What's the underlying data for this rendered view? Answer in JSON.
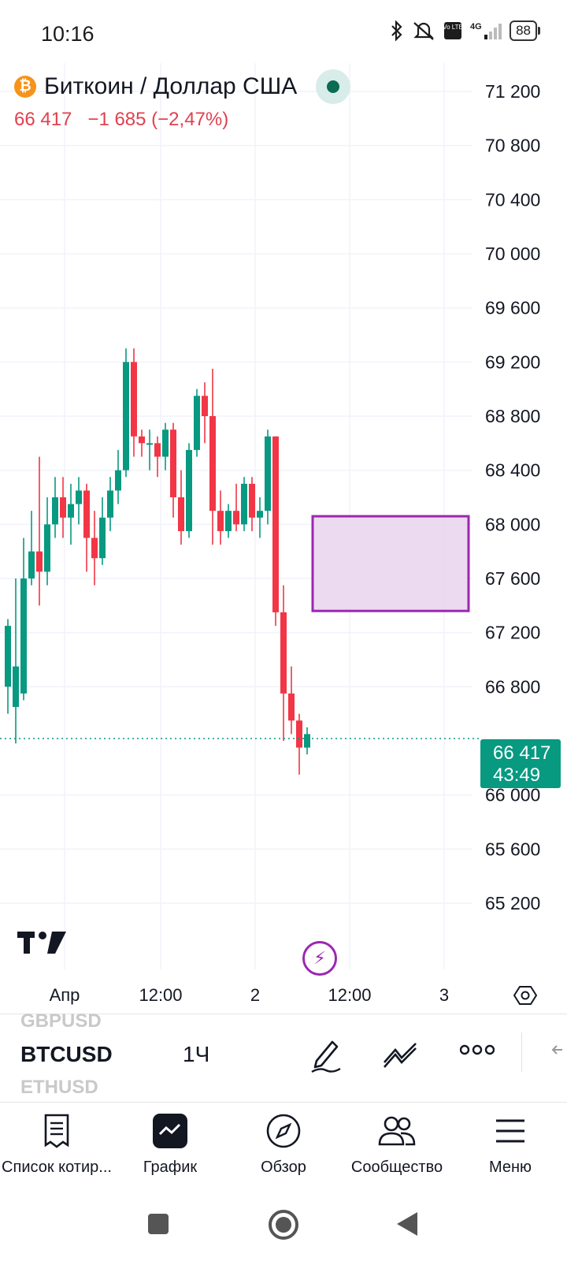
{
  "status": {
    "time": "10:16",
    "battery": "88",
    "network": "4G",
    "volte": "Vo LTE"
  },
  "symbol": {
    "title": "Биткоин / Доллар США",
    "last": "66 417",
    "change": "−1 685",
    "change_pct": "(−2,47%)"
  },
  "price_tag": {
    "price": "66 417",
    "countdown": "43:49"
  },
  "colors": {
    "up": "#089981",
    "down": "#f23645",
    "zone_border": "#9c27b0",
    "zone_fill": "#e9d3ef",
    "accent": "#089981"
  },
  "axis": {
    "price_labels": [
      "71 200",
      "70 800",
      "70 400",
      "70 000",
      "69 600",
      "69 200",
      "68 800",
      "68 400",
      "68 000",
      "67 600",
      "67 200",
      "66 800",
      "66 000",
      "65 600",
      "65 200"
    ],
    "time_labels": [
      "Апр",
      "12:00",
      "2",
      "12:00",
      "3"
    ]
  },
  "chart_data": {
    "type": "candlestick",
    "interval": "1Ч",
    "last_price": 66417,
    "zone": {
      "from_index": 39,
      "to_index": 59,
      "top": 68060,
      "bottom": 67360
    },
    "candles": [
      [
        66800,
        67250,
        66600,
        67300
      ],
      [
        66650,
        66950,
        66380,
        67600
      ],
      [
        66750,
        67600,
        66700,
        67900
      ],
      [
        67600,
        67800,
        67550,
        68100
      ],
      [
        67800,
        67650,
        67400,
        68500
      ],
      [
        67650,
        68000,
        67550,
        68200
      ],
      [
        68000,
        68200,
        67900,
        68350
      ],
      [
        68200,
        68050,
        67900,
        68350
      ],
      [
        68050,
        68150,
        67850,
        68300
      ],
      [
        68150,
        68250,
        68000,
        68350
      ],
      [
        68250,
        67900,
        67650,
        68300
      ],
      [
        67900,
        67750,
        67550,
        68100
      ],
      [
        67750,
        68050,
        67700,
        68200
      ],
      [
        68050,
        68250,
        67950,
        68350
      ],
      [
        68250,
        68400,
        68150,
        68550
      ],
      [
        68400,
        69200,
        68350,
        69300
      ],
      [
        69200,
        68650,
        68500,
        69300
      ],
      [
        68650,
        68600,
        68500,
        68700
      ],
      [
        68600,
        68600,
        68400,
        68700
      ],
      [
        68600,
        68500,
        68350,
        68650
      ],
      [
        68500,
        68700,
        68400,
        68750
      ],
      [
        68700,
        68200,
        68050,
        68750
      ],
      [
        68200,
        67950,
        67850,
        68400
      ],
      [
        67950,
        68550,
        67900,
        68600
      ],
      [
        68550,
        68950,
        68500,
        69000
      ],
      [
        68950,
        68800,
        68600,
        69050
      ],
      [
        68800,
        68100,
        67850,
        69150
      ],
      [
        68100,
        67950,
        67850,
        68250
      ],
      [
        67950,
        68100,
        67900,
        68150
      ],
      [
        68100,
        68000,
        67950,
        68300
      ],
      [
        68000,
        68300,
        67950,
        68350
      ],
      [
        68300,
        68050,
        67950,
        68350
      ],
      [
        68050,
        68100,
        67900,
        68200
      ],
      [
        68100,
        68650,
        68000,
        68700
      ],
      [
        68650,
        67350,
        67250,
        68650
      ],
      [
        67350,
        66750,
        66400,
        67550
      ],
      [
        66750,
        66550,
        66450,
        66950
      ],
      [
        66550,
        66350,
        66150,
        66600
      ],
      [
        66350,
        66450,
        66300,
        66500
      ]
    ]
  },
  "toolbar": {
    "symbol": "BTCUSD",
    "interval": "1Ч",
    "prev_symbol": "GBPUSD",
    "next_symbol": "ETHUSD"
  },
  "tabs": [
    {
      "label": "Список котир...",
      "icon": "watchlist-icon"
    },
    {
      "label": "График",
      "icon": "chart-icon"
    },
    {
      "label": "Обзор",
      "icon": "compass-icon"
    },
    {
      "label": "Сообщество",
      "icon": "community-icon"
    },
    {
      "label": "Меню",
      "icon": "menu-icon"
    }
  ],
  "logo_text": "TV"
}
